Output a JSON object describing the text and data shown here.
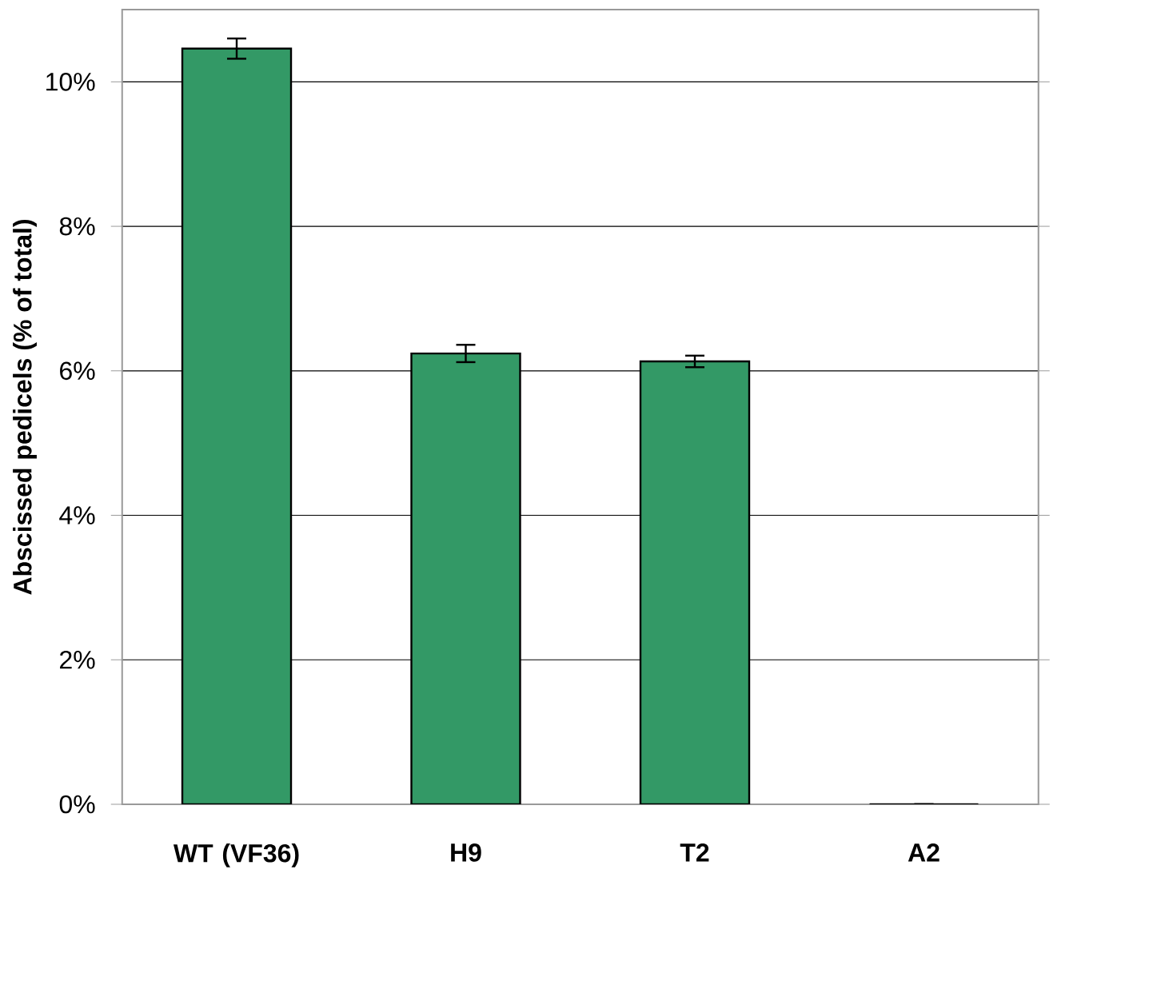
{
  "chart_data": {
    "type": "bar",
    "ylabel": "Abscissed pedicels (% of total)",
    "categories": [
      "WT (VF36)",
      "H9",
      "T2",
      "A2"
    ],
    "values": [
      10.46,
      6.24,
      6.13,
      0
    ],
    "errors": [
      0.14,
      0.12,
      0.08,
      null
    ],
    "color": "#339966",
    "ylim": [
      0,
      11
    ],
    "yticks": [
      {
        "value": 0,
        "label": "0%"
      },
      {
        "value": 2,
        "label": "2%"
      },
      {
        "value": 4,
        "label": "4%"
      },
      {
        "value": 6,
        "label": "6%"
      },
      {
        "value": 8,
        "label": "8%"
      },
      {
        "value": 10,
        "label": "10%"
      }
    ],
    "grid": "y"
  }
}
